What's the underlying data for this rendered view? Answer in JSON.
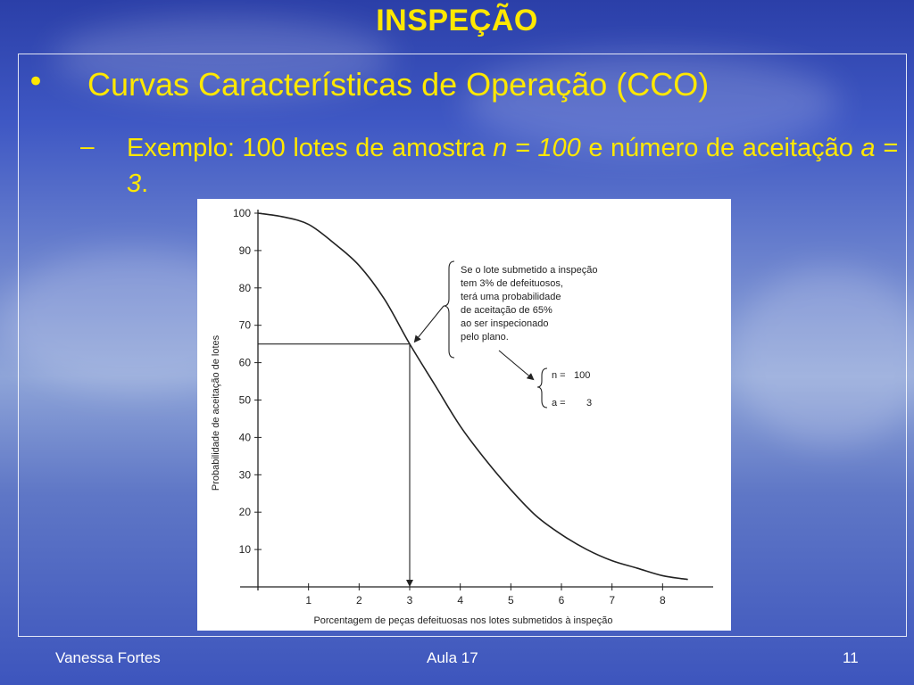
{
  "slide": {
    "title": "INSPEÇÃO",
    "bullet_symbol": "•",
    "bullet_text": "Curvas Características de Operação (CCO)",
    "sub_dash": "–",
    "sub_text_part1": "Exemplo: 100 lotes de amostra ",
    "sub_text_n": "n = 100",
    "sub_text_part2": " e número de aceitação ",
    "sub_text_a": "a = 3",
    "sub_text_end": "."
  },
  "chart_data": {
    "type": "line",
    "xlabel": "Porcentagem de peças defeituosas nos lotes submetidos à inspeção",
    "ylabel": "Probabilidade de aceitação de lotes",
    "xlim": [
      0,
      9
    ],
    "ylim": [
      0,
      100
    ],
    "x_ticks": [
      "1",
      "2",
      "3",
      "4",
      "5",
      "6",
      "7",
      "8"
    ],
    "y_ticks": [
      "10",
      "20",
      "30",
      "40",
      "50",
      "60",
      "70",
      "80",
      "90",
      "100"
    ],
    "grid": false,
    "series": [
      {
        "x": [
          0,
          0.5,
          1,
          1.5,
          2,
          2.5,
          3,
          3.5,
          4,
          4.5,
          5,
          5.5,
          6,
          6.5,
          7,
          7.5,
          8,
          8.5
        ],
        "values": [
          100,
          99,
          97,
          92,
          86,
          77,
          65,
          54,
          43,
          34,
          26,
          19,
          14,
          10,
          7,
          5,
          3,
          2
        ]
      }
    ],
    "highlight_point": {
      "x": 3,
      "y": 65
    },
    "annotation": {
      "lines": [
        "Se o lote submetido a inspeção",
        "tem 3% de defeituosos,",
        "terá uma probabilidade",
        "de aceitação de 65%",
        "ao ser inspecionado",
        "pelo plano."
      ]
    },
    "parameters": [
      {
        "label": "n =",
        "value": "100"
      },
      {
        "label": "a =",
        "value": "3"
      }
    ]
  },
  "footer": {
    "author": "Vanessa Fortes",
    "lecture": "Aula 17",
    "page": "11"
  }
}
